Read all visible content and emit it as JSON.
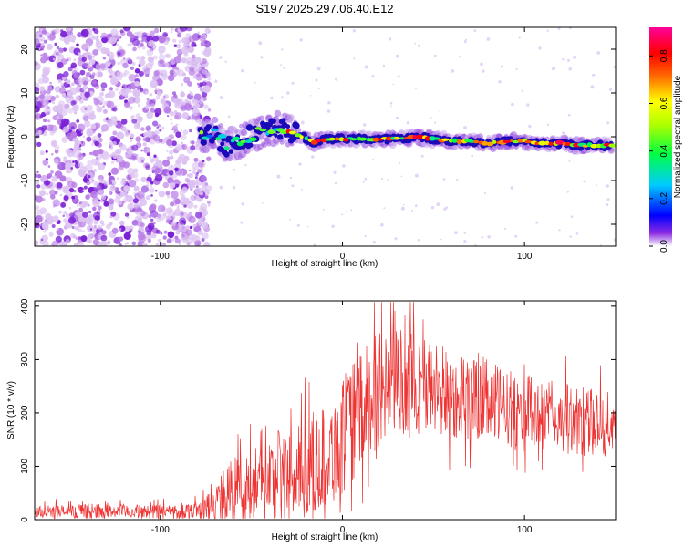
{
  "figure_title": "S197.2025.297.06.40.E12",
  "chart_data": [
    {
      "type": "heatmap",
      "xlabel": "Height of straight line (km)",
      "ylabel": "Frequency (Hz)",
      "xlim": [
        -169,
        150
      ],
      "ylim": [
        -25,
        25
      ],
      "x_ticks": [
        -100,
        0,
        100
      ],
      "y_ticks": [
        -20,
        -10,
        0,
        10,
        20
      ],
      "noise_region_x": [
        -169,
        -79
      ],
      "ridge": {
        "x": [
          -78,
          -70,
          -64,
          -58,
          -52,
          -46,
          -40,
          -34,
          -28,
          -22,
          -16,
          -10,
          -4,
          0,
          10,
          20,
          30,
          40,
          50,
          60,
          70,
          80,
          90,
          100,
          110,
          120,
          130,
          140,
          148
        ],
        "y": [
          0.5,
          0.5,
          -2.0,
          -1.5,
          0.0,
          1.0,
          1.5,
          2.0,
          1.0,
          0.0,
          -1.5,
          -0.5,
          -0.5,
          -0.5,
          -0.5,
          -0.5,
          -0.5,
          0.0,
          -0.5,
          -1.0,
          -1.0,
          -1.5,
          -1.0,
          -1.0,
          -1.5,
          -1.5,
          -2.0,
          -2.0,
          -2.0
        ]
      },
      "colorbar": {
        "label": "Normalized spectral amplitude",
        "range": [
          0,
          0.92
        ],
        "ticks": [
          "0.0",
          "0.2",
          "0.4",
          "0.6",
          "0.8"
        ]
      }
    },
    {
      "type": "line",
      "xlabel": "Height of straight line (km)",
      "ylabel": "SNR (10 * v/v)",
      "xlim": [
        -169,
        150
      ],
      "ylim": [
        0,
        410
      ],
      "x_ticks": [
        -100,
        0,
        100
      ],
      "y_ticks": [
        0,
        100,
        200,
        300,
        400
      ],
      "series": [
        {
          "name": "SNR",
          "color": "#ee3333",
          "x": [
            -169,
            -150,
            -130,
            -110,
            -90,
            -80,
            -75,
            -70,
            -65,
            -60,
            -55,
            -50,
            -45,
            -40,
            -35,
            -30,
            -25,
            -20,
            -15,
            -10,
            -5,
            0,
            5,
            10,
            15,
            20,
            25,
            30,
            35,
            40,
            45,
            50,
            55,
            60,
            70,
            80,
            90,
            100,
            110,
            120,
            130,
            140,
            150
          ],
          "base": [
            15,
            15,
            16,
            15,
            16,
            18,
            22,
            30,
            45,
            60,
            55,
            65,
            70,
            75,
            90,
            80,
            90,
            100,
            110,
            115,
            130,
            150,
            180,
            200,
            220,
            240,
            250,
            260,
            260,
            255,
            250,
            245,
            240,
            235,
            225,
            220,
            210,
            200,
            195,
            190,
            185,
            180,
            180
          ],
          "spread": [
            14,
            14,
            15,
            14,
            15,
            18,
            25,
            40,
            55,
            70,
            70,
            75,
            80,
            85,
            95,
            90,
            95,
            100,
            105,
            110,
            115,
            120,
            125,
            125,
            125,
            120,
            120,
            115,
            110,
            110,
            105,
            100,
            100,
            95,
            90,
            85,
            80,
            80,
            75,
            75,
            70,
            70,
            65
          ]
        }
      ]
    }
  ]
}
